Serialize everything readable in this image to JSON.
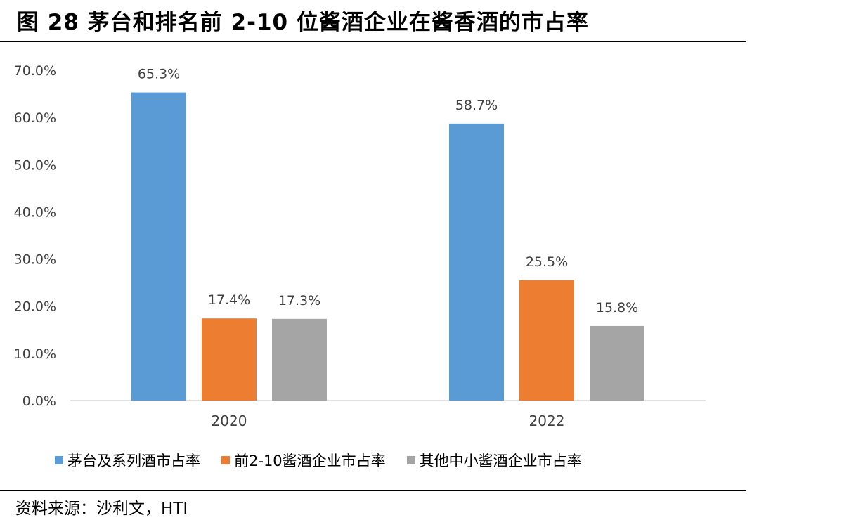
{
  "figure": {
    "title": "图 28 茅台和排名前 2-10 位酱酒企业在酱香酒的市占率",
    "source": "资料来源：沙利文，HTI"
  },
  "chart_data": {
    "type": "bar",
    "categories": [
      "2020",
      "2022"
    ],
    "series": [
      {
        "name": "茅台及系列酒市占率",
        "values": [
          65.3,
          58.7
        ],
        "labels": [
          "65.3%",
          "58.7%"
        ],
        "color": "#5b9bd5"
      },
      {
        "name": "前2-10酱酒企业市占率",
        "values": [
          17.4,
          25.5
        ],
        "labels": [
          "17.4%",
          "25.5%"
        ],
        "color": "#ed7d31"
      },
      {
        "name": "其他中小酱酒企业市占率",
        "values": [
          17.3,
          15.8
        ],
        "labels": [
          "17.3%",
          "15.8%"
        ],
        "color": "#a5a5a5"
      }
    ],
    "yticks": [
      "0.0%",
      "10.0%",
      "20.0%",
      "30.0%",
      "40.0%",
      "50.0%",
      "60.0%",
      "70.0%"
    ],
    "ylim": [
      0,
      70
    ],
    "xlabel": "",
    "ylabel": "",
    "grid": false,
    "legend_position": "bottom"
  }
}
